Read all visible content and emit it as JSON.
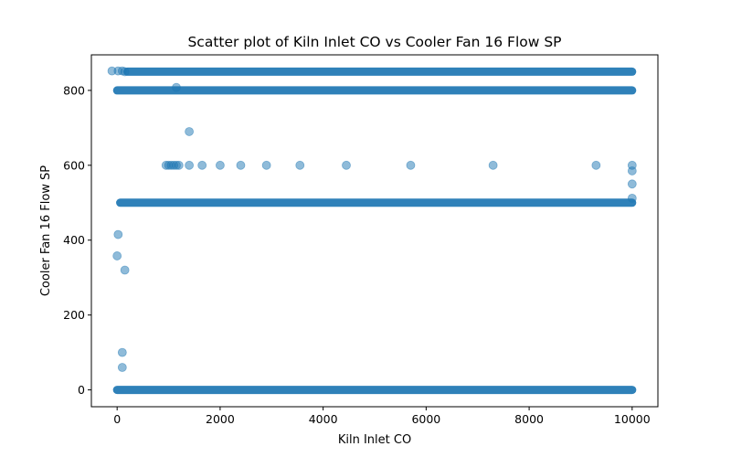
{
  "chart_data": {
    "type": "scatter",
    "title": "Scatter plot of Kiln Inlet CO vs Cooler Fan 16 Flow SP",
    "xlabel": "Kiln Inlet CO",
    "ylabel": "Cooler Fan 16 Flow SP",
    "xlim": [
      -500,
      10500
    ],
    "ylim": [
      -45,
      895
    ],
    "xticks": [
      0,
      2000,
      4000,
      6000,
      8000,
      10000
    ],
    "xtick_labels": [
      "0",
      "2000",
      "4000",
      "6000",
      "8000",
      "10000"
    ],
    "yticks": [
      0,
      200,
      400,
      600,
      800
    ],
    "ytick_labels": [
      "0",
      "200",
      "400",
      "600",
      "800"
    ],
    "grid": false,
    "marker_color": "#1f77b4",
    "marker_alpha": 0.5,
    "bands": [
      {
        "y": 850,
        "x_from": 200,
        "x_to": 10000
      },
      {
        "y": 800,
        "x_from": 0,
        "x_to": 10000
      },
      {
        "y": 500,
        "x_from": 60,
        "x_to": 10000
      },
      {
        "y": 0,
        "x_from": 0,
        "x_to": 10000
      }
    ],
    "points": [
      {
        "x": -100,
        "y": 852
      },
      {
        "x": 20,
        "y": 852
      },
      {
        "x": 100,
        "y": 852
      },
      {
        "x": 150,
        "y": 850
      },
      {
        "x": 1150,
        "y": 808
      },
      {
        "x": 1400,
        "y": 690
      },
      {
        "x": 950,
        "y": 600
      },
      {
        "x": 1000,
        "y": 600
      },
      {
        "x": 1050,
        "y": 600
      },
      {
        "x": 1100,
        "y": 600
      },
      {
        "x": 1150,
        "y": 600
      },
      {
        "x": 1200,
        "y": 600
      },
      {
        "x": 1400,
        "y": 600
      },
      {
        "x": 1650,
        "y": 600
      },
      {
        "x": 2000,
        "y": 600
      },
      {
        "x": 2400,
        "y": 600
      },
      {
        "x": 2900,
        "y": 600
      },
      {
        "x": 3550,
        "y": 600
      },
      {
        "x": 4450,
        "y": 600
      },
      {
        "x": 5700,
        "y": 600
      },
      {
        "x": 7300,
        "y": 600
      },
      {
        "x": 9300,
        "y": 600
      },
      {
        "x": 10000,
        "y": 600
      },
      {
        "x": 10000,
        "y": 585
      },
      {
        "x": 10000,
        "y": 550
      },
      {
        "x": 10000,
        "y": 512
      },
      {
        "x": 20,
        "y": 415
      },
      {
        "x": 0,
        "y": 358
      },
      {
        "x": 150,
        "y": 320
      },
      {
        "x": 100,
        "y": 100
      },
      {
        "x": 100,
        "y": 60
      }
    ]
  }
}
